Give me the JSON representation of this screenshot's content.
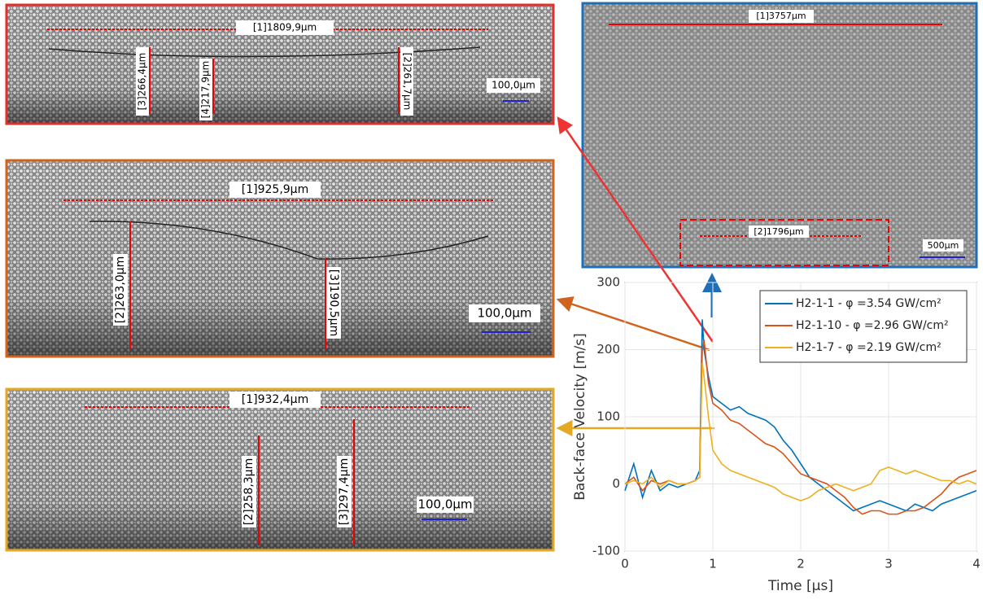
{
  "chart_data": {
    "type": "line",
    "xlabel": "Time [μs]",
    "ylabel": "Back-face Velocity [m/s]",
    "x": [
      0,
      0.1,
      0.2,
      0.3,
      0.4,
      0.5,
      0.6,
      0.7,
      0.8,
      0.85,
      0.88,
      0.9,
      0.95,
      1.0,
      1.1,
      1.2,
      1.3,
      1.4,
      1.5,
      1.6,
      1.7,
      1.8,
      1.9,
      2.0,
      2.1,
      2.2,
      2.3,
      2.4,
      2.5,
      2.6,
      2.7,
      2.8,
      2.9,
      3.0,
      3.1,
      3.2,
      3.3,
      3.4,
      3.5,
      3.6,
      3.7,
      3.8,
      3.9,
      4.0
    ],
    "series": [
      {
        "name": "H2-1-1 - φ =3.54 GW/cm²",
        "color": "#0072bd",
        "values": [
          -10,
          30,
          -20,
          20,
          -10,
          0,
          -5,
          0,
          5,
          20,
          245,
          200,
          160,
          130,
          120,
          110,
          115,
          105,
          100,
          95,
          85,
          65,
          50,
          30,
          10,
          0,
          -10,
          -20,
          -30,
          -40,
          -35,
          -30,
          -25,
          -30,
          -35,
          -40,
          -30,
          -35,
          -40,
          -30,
          -25,
          -20,
          -15,
          -10
        ]
      },
      {
        "name": "H2-1-10 - φ =2.96 GW/cm²",
        "color": "#d95319",
        "values": [
          0,
          10,
          -10,
          5,
          0,
          5,
          0,
          0,
          5,
          10,
          200,
          215,
          150,
          120,
          110,
          95,
          90,
          80,
          70,
          60,
          55,
          45,
          30,
          15,
          10,
          5,
          0,
          -10,
          -20,
          -35,
          -45,
          -40,
          -40,
          -45,
          -45,
          -40,
          -40,
          -35,
          -25,
          -15,
          0,
          10,
          15,
          20
        ]
      },
      {
        "name": "H2-1-7 - φ =2.19 GW/cm²",
        "color": "#edb120",
        "values": [
          0,
          5,
          0,
          10,
          -5,
          5,
          0,
          0,
          5,
          10,
          180,
          160,
          100,
          50,
          30,
          20,
          15,
          10,
          5,
          0,
          -5,
          -15,
          -20,
          -25,
          -20,
          -10,
          -5,
          0,
          -5,
          -10,
          -5,
          0,
          20,
          25,
          20,
          15,
          20,
          15,
          10,
          5,
          5,
          0,
          5,
          0
        ]
      }
    ],
    "xlim": [
      0,
      4
    ],
    "ylim": [
      -100,
      300
    ],
    "xticks": [
      0,
      1,
      2,
      3,
      4
    ],
    "yticks": [
      -100,
      0,
      100,
      200,
      300
    ],
    "grid": true,
    "legend": "upper right"
  },
  "micrographs": {
    "red": [
      "[1]1809,9µm",
      "[3]266,4µm",
      "[4]217,9µm",
      "[2]261,7µm",
      "100,0µm"
    ],
    "orange": [
      "[1]925,9µm",
      "[2]263,0µm",
      "[3]190,5µm",
      "100,0µm"
    ],
    "yellow": [
      "[1]932,4µm",
      "[2]258,3µm",
      "[3]297,4µm",
      "100,0µm"
    ],
    "blue": [
      "[1]3757µm",
      "[2]1796µm",
      "500µm"
    ]
  }
}
